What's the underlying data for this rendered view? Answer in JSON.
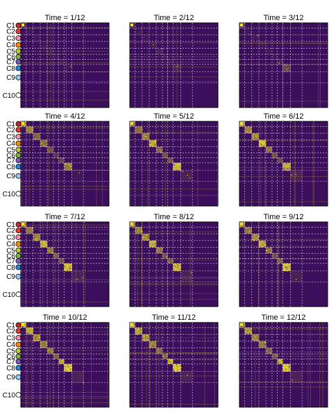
{
  "chart_data": {
    "type": "heatmap",
    "colormap": "viridis-like (purple background, yellow blocks)",
    "grid": "dashed white lines at cluster boundaries",
    "clusters": [
      {
        "label": "C1",
        "color": "#c62828"
      },
      {
        "label": "C2",
        "color": "#e53935"
      },
      {
        "label": "C3",
        "color": "#f48fb1"
      },
      {
        "label": "C4",
        "color": "#fb8c00"
      },
      {
        "label": "C5",
        "color": "#c0ca33"
      },
      {
        "label": "C6",
        "color": "#7cb342"
      },
      {
        "label": "C7",
        "color": "#7e57c2"
      },
      {
        "label": "C8",
        "color": "#1e88e5"
      },
      {
        "label": "C9",
        "color": "#90caf9"
      },
      {
        "label": "C10",
        "color": "#ffffff"
      }
    ],
    "panels": [
      {
        "title": "Time = 1/12",
        "intensity": [
          0.15,
          0.05,
          0.05,
          0.05,
          0.05,
          0.05,
          0.05,
          0.05,
          0.0,
          0.0
        ]
      },
      {
        "title": "Time = 2/12",
        "intensity": [
          0.1,
          0.05,
          0.05,
          0.05,
          0.1,
          0.05,
          0.05,
          0.1,
          0.0,
          0.0
        ]
      },
      {
        "title": "Time = 3/12",
        "intensity": [
          0.25,
          0.05,
          0.05,
          0.05,
          0.05,
          0.05,
          0.1,
          0.3,
          0.0,
          0.0
        ]
      },
      {
        "title": "Time = 4/12",
        "intensity": [
          0.7,
          0.6,
          0.45,
          0.5,
          0.35,
          0.2,
          0.25,
          0.55,
          0.05,
          0.0
        ]
      },
      {
        "title": "Time = 5/12",
        "intensity": [
          0.6,
          0.5,
          0.6,
          0.8,
          0.5,
          0.3,
          0.35,
          0.85,
          0.1,
          0.0
        ]
      },
      {
        "title": "Time = 6/12",
        "intensity": [
          0.7,
          0.6,
          0.65,
          0.85,
          0.55,
          0.35,
          0.3,
          0.8,
          0.1,
          0.0
        ]
      },
      {
        "title": "Time = 7/12",
        "intensity": [
          0.65,
          0.55,
          0.6,
          0.8,
          0.55,
          0.4,
          0.35,
          0.9,
          0.1,
          0.0
        ]
      },
      {
        "title": "Time = 8/12",
        "intensity": [
          0.6,
          0.55,
          0.6,
          0.8,
          0.55,
          0.35,
          0.35,
          0.85,
          0.1,
          0.0
        ]
      },
      {
        "title": "Time = 9/12",
        "intensity": [
          0.6,
          0.55,
          0.65,
          0.8,
          0.5,
          0.35,
          0.4,
          0.9,
          0.1,
          0.0
        ]
      },
      {
        "title": "Time = 10/12",
        "intensity": [
          0.85,
          0.8,
          0.65,
          0.6,
          0.5,
          0.4,
          0.75,
          0.95,
          0.1,
          0.0
        ]
      },
      {
        "title": "Time = 11/12",
        "intensity": [
          0.75,
          0.75,
          0.65,
          0.6,
          0.45,
          0.4,
          0.85,
          0.95,
          0.1,
          0.0
        ]
      },
      {
        "title": "Time = 12/12",
        "intensity": [
          0.6,
          0.7,
          0.6,
          0.55,
          0.45,
          0.35,
          0.85,
          0.95,
          0.1,
          0.0
        ]
      }
    ]
  }
}
